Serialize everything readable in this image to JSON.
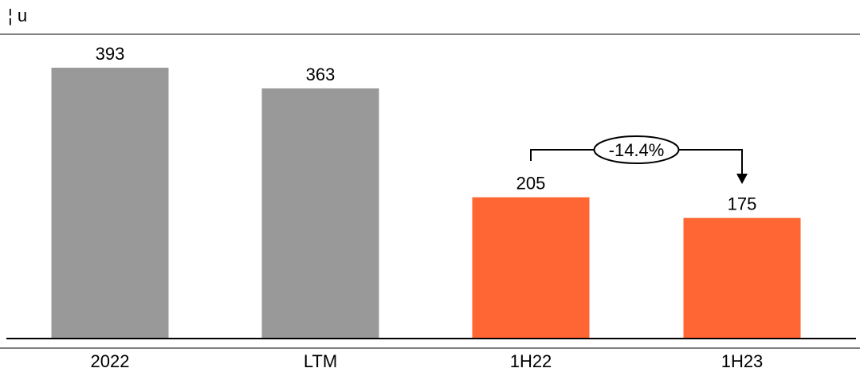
{
  "unit_label": "¦ u",
  "chart_data": {
    "type": "bar",
    "title": "",
    "xlabel": "",
    "ylabel": "",
    "categories": [
      "2022",
      "LTM",
      "1H22",
      "1H23"
    ],
    "values": [
      393,
      363,
      205,
      175
    ],
    "colors": [
      "#999999",
      "#999999",
      "#ff6633",
      "#ff6633"
    ],
    "ylim": [
      0,
      410
    ],
    "grid": false,
    "legend": "none",
    "annotation": {
      "from": "1H22",
      "to": "1H23",
      "label": "-14.4%"
    }
  }
}
